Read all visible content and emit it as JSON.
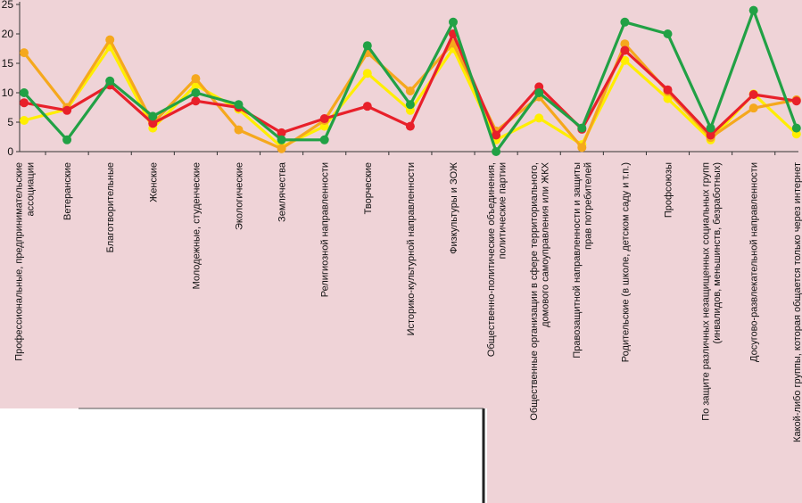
{
  "chart_data": {
    "type": "line",
    "title": "",
    "xlabel": "",
    "ylabel": "",
    "ylim": [
      0,
      25
    ],
    "yticks": [
      0,
      5,
      10,
      15,
      20,
      25
    ],
    "grid": false,
    "legend": "none",
    "background_color": "#efd3d7",
    "categories": [
      [
        "Профессиональные, предпринимательские",
        "ассоциации"
      ],
      [
        "Ветеранские"
      ],
      [
        "Благотворительные"
      ],
      [
        "Женские"
      ],
      [
        "Молодежные, студенческие"
      ],
      [
        "Экологические"
      ],
      [
        "Землячества"
      ],
      [
        "Религиозной направленности"
      ],
      [
        "Творческие"
      ],
      [
        "Историко-культурной направленности"
      ],
      [
        "Физкультуры и ЗОЖ"
      ],
      [
        "Общественно-политические объединения,",
        "политические партии"
      ],
      [
        "Общественные организации в сфере территориального,",
        "домового самоуправления или ЖКХ"
      ],
      [
        "Правозащитной направленности и защиты",
        "прав потребителей"
      ],
      [
        "Родительские (в школе, детском саду и т.п.)"
      ],
      [
        "Профсоюзы"
      ],
      [
        "По защите различных незащищенных социальных групп",
        "(инвалидов, меньшинств, безработных)"
      ],
      [
        "Досугово-развлекательной направленности"
      ],
      [
        "Какой-либо группы, которая общается только через интернет"
      ]
    ],
    "series": [
      {
        "color": "#ffee00",
        "values": [
          5.3,
          7.2,
          17.8,
          4.0,
          11.3,
          7.2,
          0.8,
          4.3,
          13.3,
          7.0,
          17.5,
          2.0,
          5.7,
          1.2,
          15.5,
          9.0,
          2.0,
          9.8,
          3.0
        ]
      },
      {
        "color": "#f5a81d",
        "values": [
          16.8,
          7.5,
          19.0,
          4.8,
          12.4,
          3.7,
          0.5,
          5.3,
          16.8,
          10.3,
          18.4,
          3.5,
          9.3,
          0.7,
          18.3,
          10.2,
          2.4,
          7.4,
          8.8
        ]
      },
      {
        "color": "#e8202a",
        "values": [
          8.3,
          7.0,
          11.3,
          4.8,
          8.6,
          7.5,
          3.2,
          5.6,
          7.7,
          4.3,
          20.0,
          2.8,
          11.0,
          3.8,
          17.2,
          10.5,
          2.8,
          9.7,
          8.6
        ]
      },
      {
        "color": "#21a145",
        "values": [
          10.0,
          2.0,
          12.0,
          6.0,
          10.0,
          8.0,
          2.0,
          2.0,
          18.0,
          8.0,
          22.0,
          0.0,
          10.0,
          4.0,
          22.0,
          20.0,
          4.0,
          24.0,
          4.0
        ]
      }
    ]
  }
}
